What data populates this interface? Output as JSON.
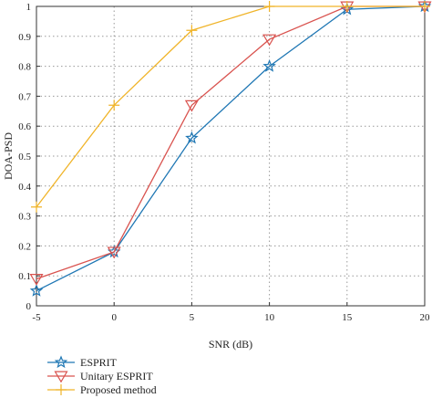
{
  "chart_data": {
    "type": "line",
    "x": [
      -5,
      0,
      5,
      10,
      15,
      20
    ],
    "xlabel": "SNR (dB)",
    "ylabel": "DOA-PSD",
    "xlim": [
      -5,
      20
    ],
    "ylim": [
      0,
      1
    ],
    "xticks": [
      "-5",
      "0",
      "5",
      "10",
      "15",
      "20"
    ],
    "yticks": [
      "0",
      "0.1",
      "0.2",
      "0.3",
      "0.4",
      "0.5",
      "0.6",
      "0.7",
      "0.8",
      "0.9",
      "1"
    ],
    "grid": true,
    "legend_position": "bottom-left, below plot",
    "series": [
      {
        "name": "ESPRIT",
        "color": "#1f77b4",
        "marker": "star",
        "values": [
          0.05,
          0.18,
          0.56,
          0.8,
          0.99,
          1.0
        ]
      },
      {
        "name": "Unitary ESPRIT",
        "color": "#d9534f",
        "marker": "triangle-down",
        "values": [
          0.09,
          0.18,
          0.67,
          0.89,
          1.0,
          1.0
        ]
      },
      {
        "name": "Proposed method",
        "color": "#f0b429",
        "marker": "plus",
        "values": [
          0.33,
          0.67,
          0.92,
          1.0,
          1.0,
          1.0
        ]
      }
    ]
  }
}
